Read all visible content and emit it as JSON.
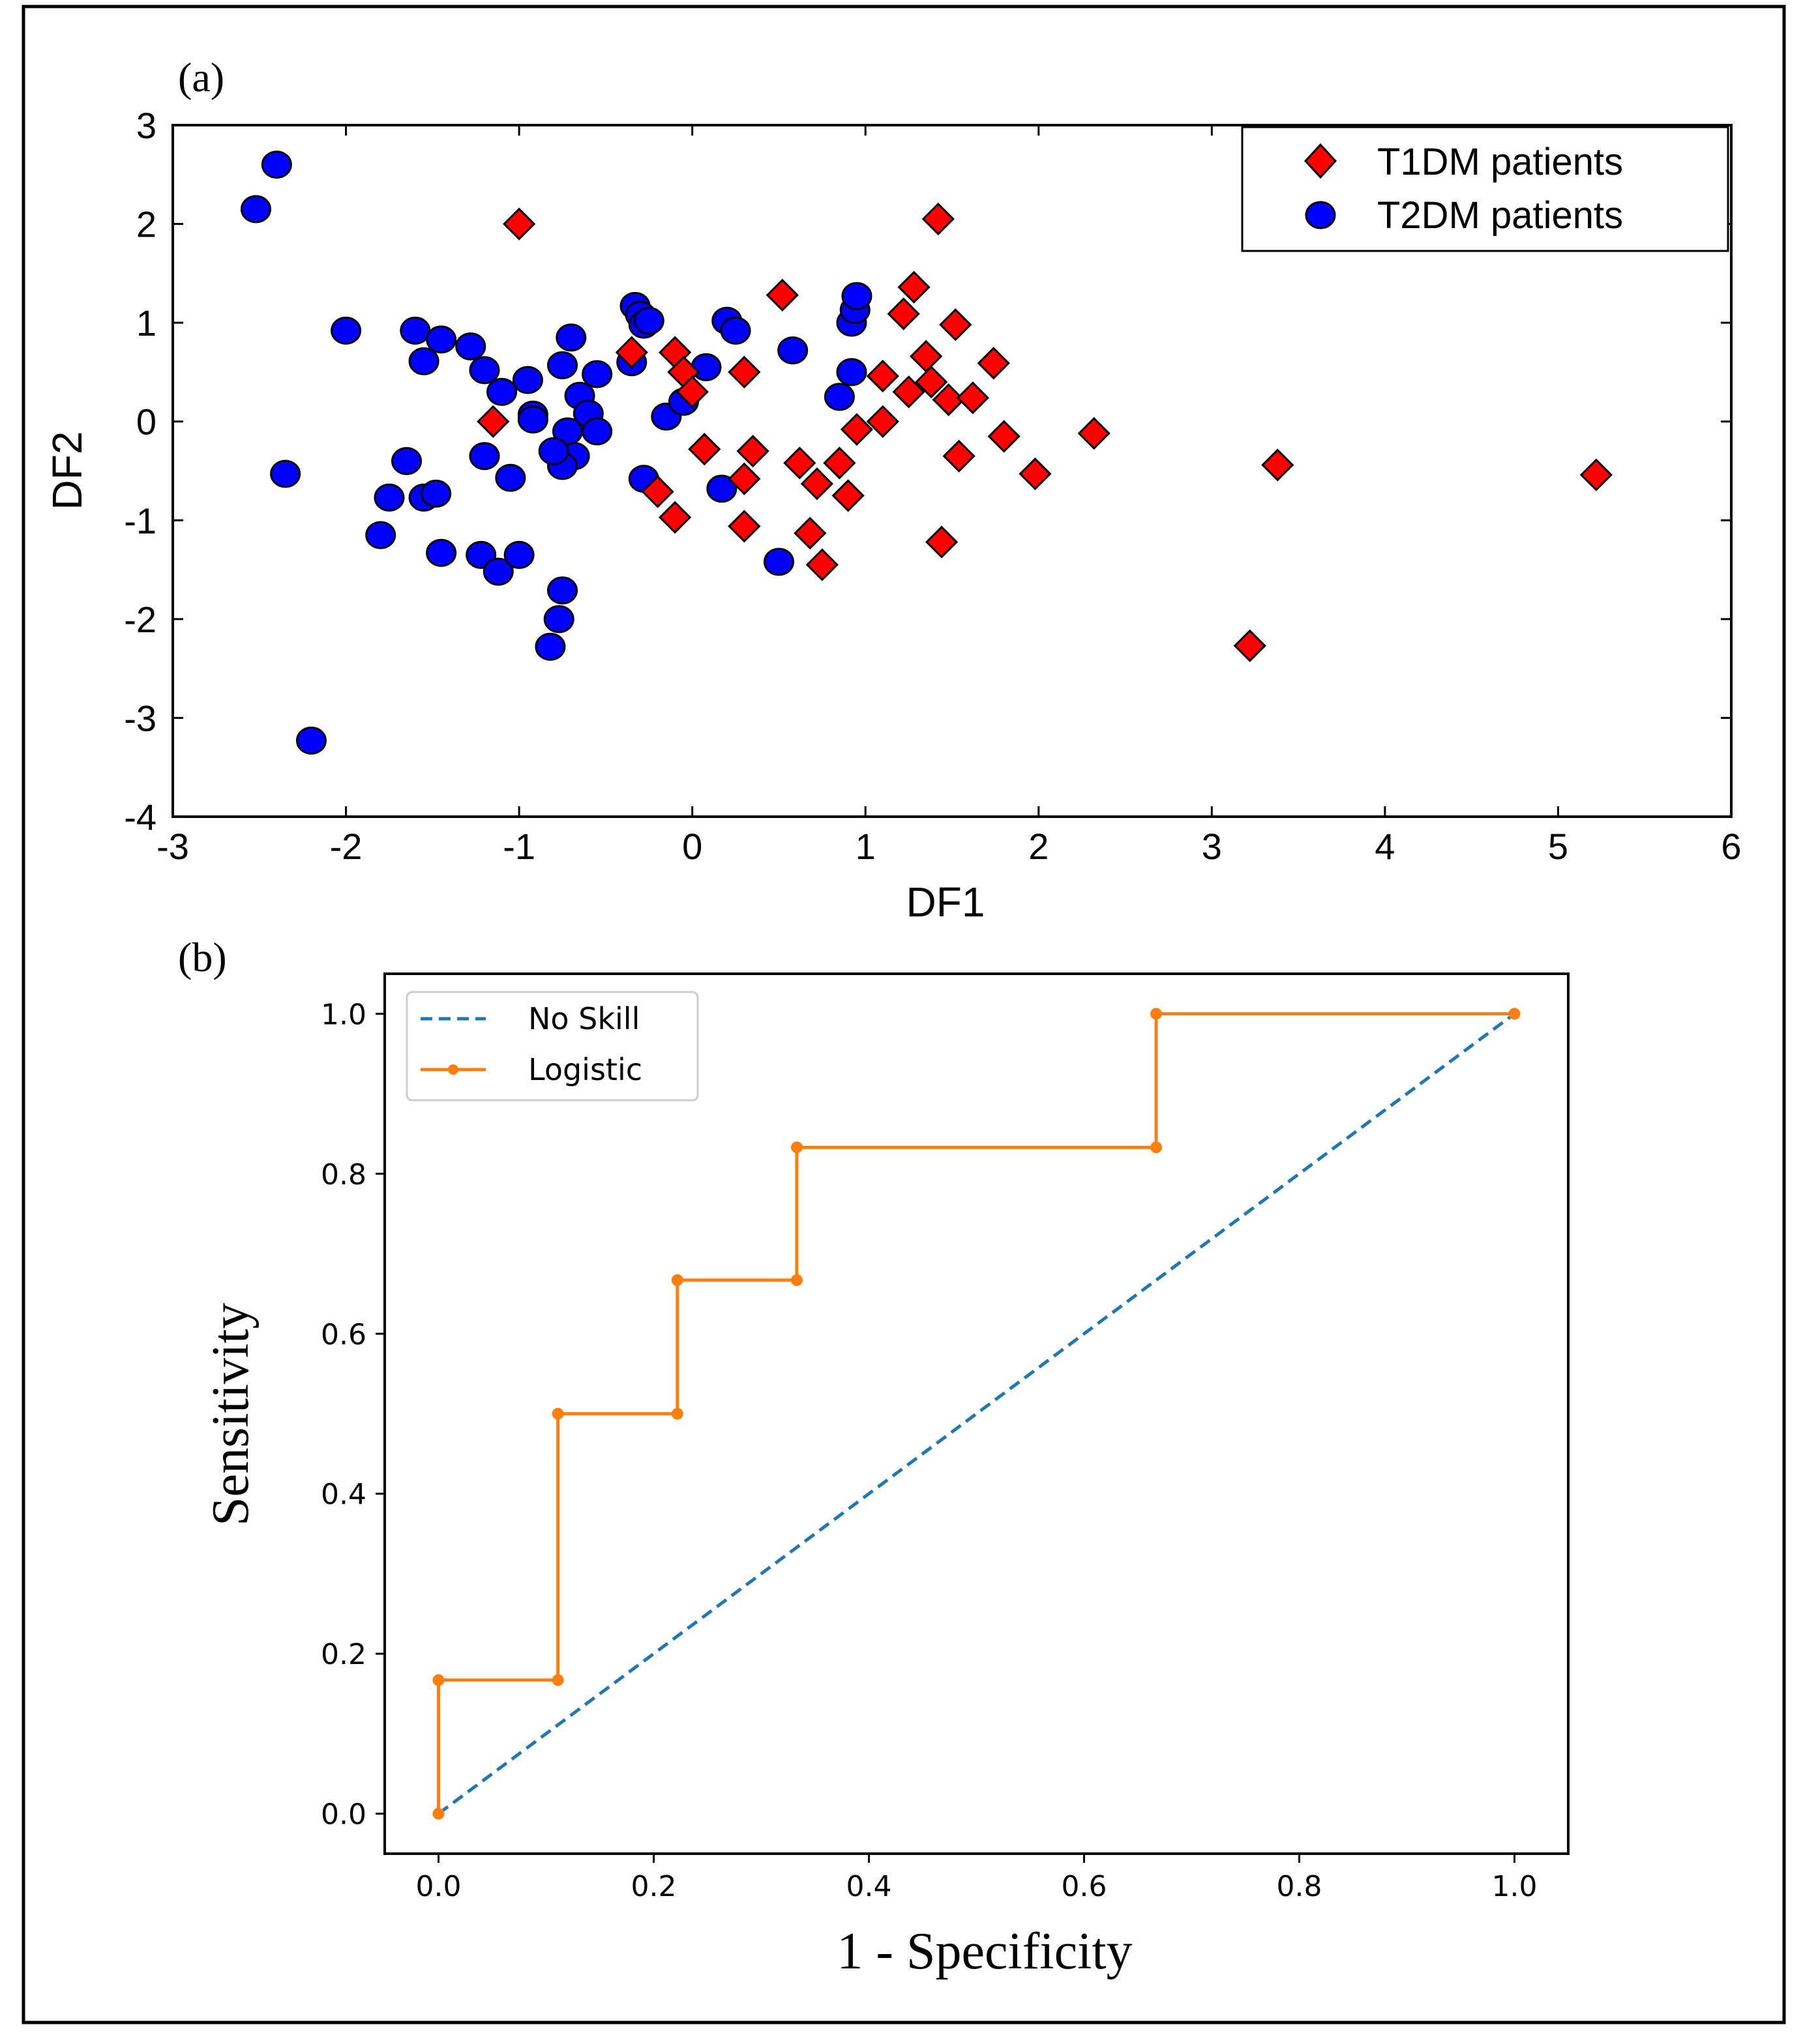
{
  "figure": {
    "panel_a_label": "(a)",
    "panel_b_label": "(b)"
  },
  "chart_data": [
    {
      "type": "scatter",
      "title": "",
      "xlabel": "DF1",
      "ylabel": "DF2",
      "xlim": [
        -3,
        6
      ],
      "ylim": [
        -4,
        3
      ],
      "xticks": [
        -3,
        -2,
        -1,
        0,
        1,
        2,
        3,
        4,
        5,
        6
      ],
      "yticks": [
        -4,
        -3,
        -2,
        -1,
        0,
        1,
        2,
        3
      ],
      "legend_position": "top-right",
      "colors": {
        "t1": "#ff0000",
        "t2": "#0000ff"
      },
      "series": [
        {
          "name": "T1DM patients",
          "marker": "diamond",
          "points": [
            [
              -1.0,
              2.0
            ],
            [
              1.42,
              2.05
            ],
            [
              0.52,
              1.28
            ],
            [
              1.28,
              1.36
            ],
            [
              1.22,
              1.09
            ],
            [
              1.52,
              0.98
            ],
            [
              -0.35,
              0.7
            ],
            [
              -0.1,
              0.7
            ],
            [
              -0.05,
              0.5
            ],
            [
              0.0,
              0.3
            ],
            [
              0.3,
              0.5
            ],
            [
              1.1,
              0.46
            ],
            [
              1.25,
              0.3
            ],
            [
              1.35,
              0.66
            ],
            [
              1.38,
              0.4
            ],
            [
              1.48,
              0.22
            ],
            [
              1.62,
              0.24
            ],
            [
              1.74,
              0.59
            ],
            [
              -1.15,
              0.0
            ],
            [
              0.95,
              -0.08
            ],
            [
              1.1,
              0.0
            ],
            [
              1.8,
              -0.15
            ],
            [
              2.32,
              -0.12
            ],
            [
              0.07,
              -0.28
            ],
            [
              0.35,
              -0.3
            ],
            [
              0.62,
              -0.42
            ],
            [
              0.85,
              -0.42
            ],
            [
              1.54,
              -0.35
            ],
            [
              -0.2,
              -0.71
            ],
            [
              0.3,
              -0.58
            ],
            [
              0.72,
              -0.63
            ],
            [
              0.9,
              -0.75
            ],
            [
              1.98,
              -0.53
            ],
            [
              3.38,
              -0.44
            ],
            [
              5.22,
              -0.54
            ],
            [
              -0.1,
              -0.97
            ],
            [
              0.3,
              -1.06
            ],
            [
              0.68,
              -1.13
            ],
            [
              1.44,
              -1.22
            ],
            [
              0.75,
              -1.45
            ],
            [
              3.22,
              -2.27
            ]
          ]
        },
        {
          "name": "T2DM patients",
          "marker": "circle",
          "points": [
            [
              -2.4,
              2.6
            ],
            [
              -2.52,
              2.15
            ],
            [
              -2.0,
              0.92
            ],
            [
              -1.6,
              0.92
            ],
            [
              -1.55,
              0.61
            ],
            [
              -1.45,
              0.83
            ],
            [
              -1.28,
              0.76
            ],
            [
              -1.2,
              0.52
            ],
            [
              -1.1,
              0.3
            ],
            [
              -0.95,
              0.42
            ],
            [
              -0.92,
              0.07
            ],
            [
              -0.92,
              0.02
            ],
            [
              -0.75,
              0.57
            ],
            [
              -0.7,
              0.85
            ],
            [
              -0.65,
              0.26
            ],
            [
              -0.6,
              0.08
            ],
            [
              -0.55,
              0.48
            ],
            [
              -0.55,
              -0.1
            ],
            [
              -0.35,
              0.6
            ],
            [
              -0.33,
              1.17
            ],
            [
              -0.3,
              1.08
            ],
            [
              -0.28,
              0.98
            ],
            [
              -0.25,
              1.02
            ],
            [
              -0.15,
              0.05
            ],
            [
              -0.05,
              0.2
            ],
            [
              0.08,
              0.55
            ],
            [
              0.2,
              1.02
            ],
            [
              0.25,
              0.92
            ],
            [
              0.58,
              0.72
            ],
            [
              0.85,
              0.25
            ],
            [
              0.92,
              0.5
            ],
            [
              0.92,
              1.0
            ],
            [
              0.94,
              1.13
            ],
            [
              0.95,
              1.27
            ],
            [
              -0.72,
              -0.1
            ],
            [
              -0.68,
              -0.35
            ],
            [
              -0.75,
              -0.45
            ],
            [
              -0.8,
              -0.3
            ],
            [
              -1.2,
              -0.35
            ],
            [
              -1.65,
              -0.4
            ],
            [
              -1.05,
              -0.57
            ],
            [
              -2.35,
              -0.53
            ],
            [
              -0.28,
              -0.58
            ],
            [
              0.17,
              -0.68
            ],
            [
              -1.75,
              -0.77
            ],
            [
              -1.55,
              -0.77
            ],
            [
              -1.48,
              -0.73
            ],
            [
              -1.8,
              -1.15
            ],
            [
              -1.45,
              -1.33
            ],
            [
              -1.22,
              -1.35
            ],
            [
              -1.12,
              -1.52
            ],
            [
              -1.0,
              -1.35
            ],
            [
              -0.75,
              -1.71
            ],
            [
              -0.77,
              -2.0
            ],
            [
              -0.82,
              -2.28
            ],
            [
              0.5,
              -1.42
            ],
            [
              -2.2,
              -3.23
            ]
          ]
        }
      ]
    },
    {
      "type": "line",
      "title": "",
      "xlabel": "1 - Specificity",
      "ylabel": "Sensitivity",
      "xlim": [
        -0.05,
        1.05
      ],
      "ylim": [
        -0.05,
        1.05
      ],
      "xticks": [
        "0.0",
        "0.2",
        "0.4",
        "0.6",
        "0.8",
        "1.0"
      ],
      "yticks": [
        "0.0",
        "0.2",
        "0.4",
        "0.6",
        "0.8",
        "1.0"
      ],
      "legend_position": "top-left",
      "colors": {
        "no_skill": "#1f77b4",
        "logistic": "#ff7f0e"
      },
      "series": [
        {
          "name": "No Skill",
          "style": "dashed",
          "x": [
            0,
            1
          ],
          "y": [
            0,
            1
          ]
        },
        {
          "name": "Logistic",
          "style": "solid-marker",
          "x": [
            0,
            0,
            0.111,
            0.111,
            0.222,
            0.222,
            0.333,
            0.333,
            0.667,
            0.667,
            1.0
          ],
          "y": [
            0,
            0.167,
            0.167,
            0.5,
            0.5,
            0.667,
            0.667,
            0.833,
            0.833,
            1.0,
            1.0
          ]
        }
      ]
    }
  ]
}
